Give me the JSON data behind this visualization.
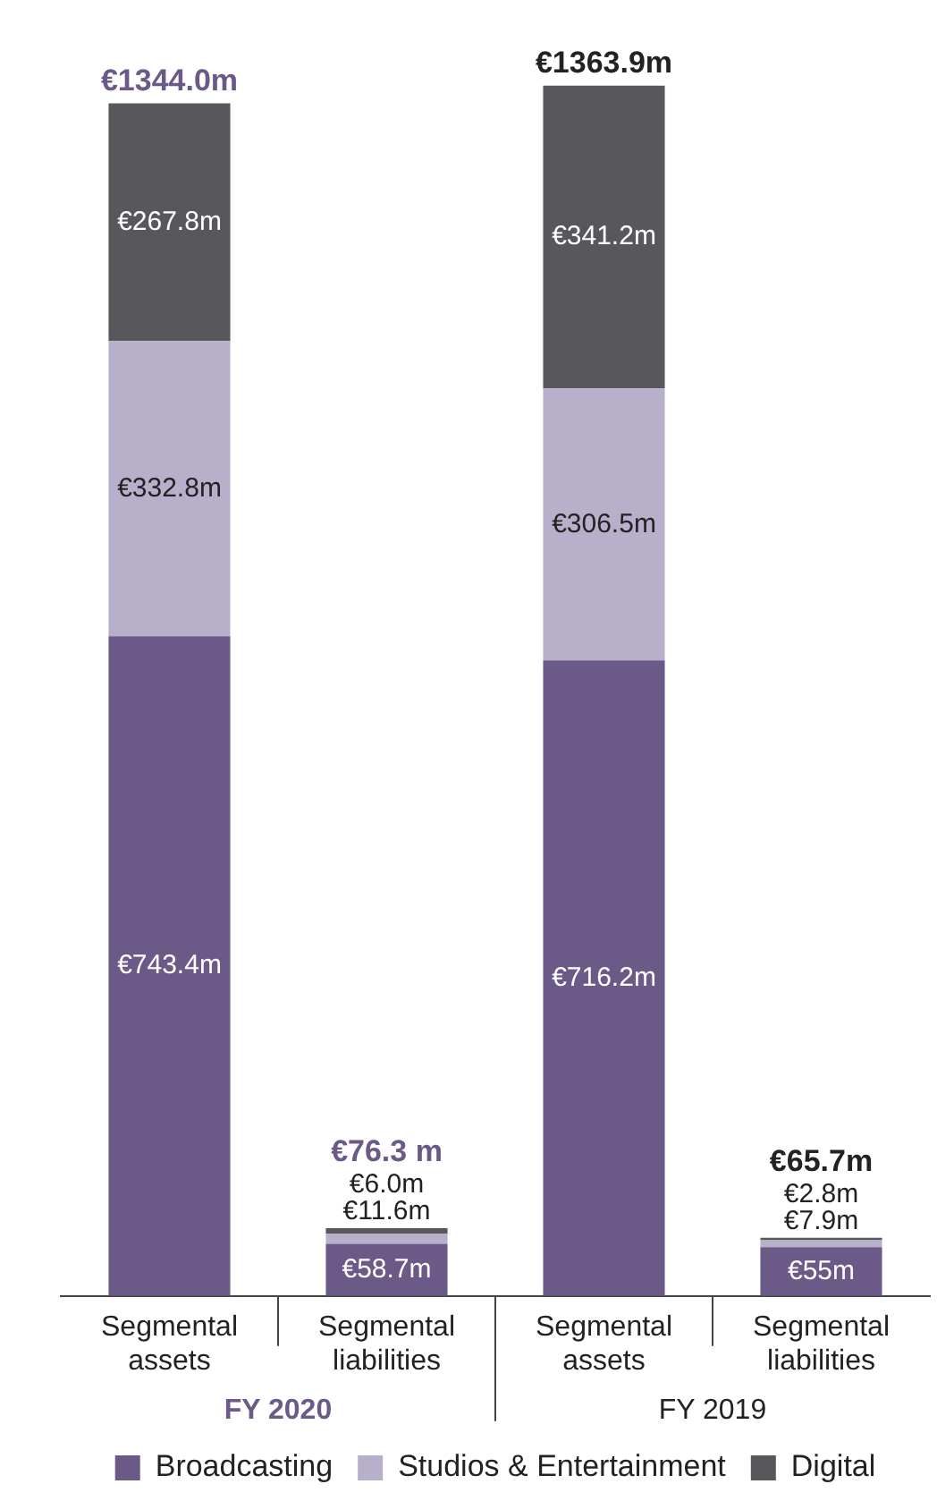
{
  "chart_data": {
    "type": "bar",
    "stacked": true,
    "categories": [
      "Segmental assets",
      "Segmental liabilities",
      "Segmental assets",
      "Segmental liabilities"
    ],
    "series": [
      {
        "name": "Broadcasting",
        "color": "#6b5a88",
        "values": [
          743.4,
          58.7,
          716.2,
          55
        ],
        "value_labels": [
          "€743.4m",
          "€58.7m",
          "€716.2m",
          "€55m"
        ]
      },
      {
        "name": "Studios & Entertainment",
        "color": "#b8afca",
        "values": [
          332.8,
          11.6,
          306.5,
          7.9
        ],
        "value_labels": [
          "€332.8m",
          "€11.6m",
          "€306.5m",
          "€7.9m"
        ]
      },
      {
        "name": "Digital",
        "color": "#58575c",
        "values": [
          267.8,
          6.0,
          341.2,
          2.8
        ],
        "value_labels": [
          "€267.8m",
          "€6.0m",
          "€341.2m",
          "€2.8m"
        ]
      }
    ],
    "totals": [
      "€1344.0m",
      "€76.3 m",
      "€1363.9m",
      "€65.7m"
    ],
    "annotations": [
      "FY 2020",
      "FY 2019"
    ],
    "tick_labels": "x",
    "grid": false,
    "legend": "bottom"
  }
}
